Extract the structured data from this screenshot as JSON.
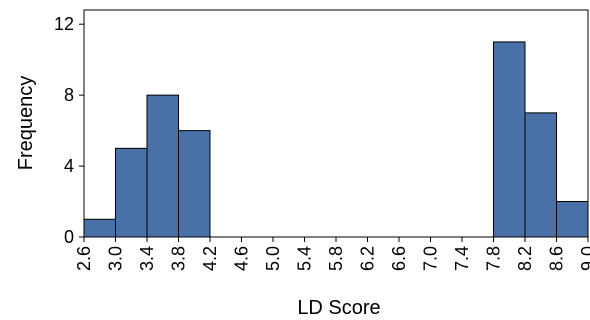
{
  "chart_data": {
    "type": "bar",
    "histogram": true,
    "title": "",
    "xlabel": "LD Score",
    "ylabel": "Frequency",
    "xlim": [
      2.6,
      9.0
    ],
    "ylim": [
      0,
      12.8
    ],
    "x_ticks": [
      "2.6",
      "3.0",
      "3.4",
      "3.8",
      "4.2",
      "4.6",
      "5.0",
      "5.4",
      "5.8",
      "6.2",
      "6.6",
      "7.0",
      "7.4",
      "7.8",
      "8.2",
      "8.6",
      "9.0"
    ],
    "y_ticks": [
      0,
      4,
      8,
      12
    ],
    "bin_edges": [
      2.6,
      3.0,
      3.4,
      3.8,
      4.2,
      4.6,
      5.0,
      5.4,
      5.8,
      6.2,
      6.6,
      7.0,
      7.4,
      7.8,
      8.2,
      8.6,
      9.0
    ],
    "values": [
      1,
      5,
      8,
      6,
      0,
      0,
      0,
      0,
      0,
      0,
      0,
      0,
      0,
      11,
      7,
      2
    ],
    "bar_color": "#4a70a8",
    "grid": false,
    "legend": "none"
  }
}
